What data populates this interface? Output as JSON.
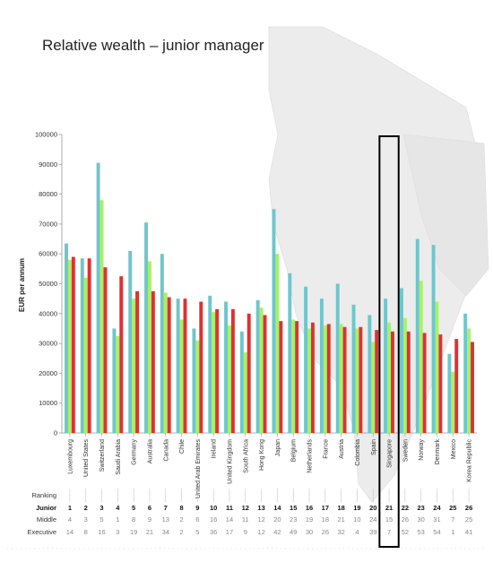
{
  "chart_data": {
    "type": "bar",
    "title": "Relative wealth – junior manager",
    "ylabel": "EUR per annum",
    "xlabel": "",
    "ylim": [
      0,
      100000
    ],
    "yticks": [
      "0",
      "10000",
      "20000",
      "30000",
      "40000",
      "50000",
      "60000",
      "70000",
      "80000",
      "90000",
      "100000"
    ],
    "grid": false,
    "legend": "none",
    "categories": [
      "Luxembourg",
      "United States",
      "Switzerland",
      "Saudi Arabia",
      "Germany",
      "Australia",
      "Canada",
      "Chile",
      "United Arab Emirates",
      "Ireland",
      "United Kingdom",
      "South Africa",
      "Hong Kong",
      "Japan",
      "Belgium",
      "Netherlands",
      "France",
      "Austria",
      "Colombia",
      "Spain",
      "Singapore",
      "Sweden",
      "Norway",
      "Denmark",
      "Mexico",
      "Korea Republic"
    ],
    "series": [
      {
        "color": "#6ec6cc",
        "values": [
          63500,
          58500,
          90500,
          35000,
          61000,
          70500,
          60000,
          45000,
          35000,
          46000,
          44000,
          34000,
          44500,
          75000,
          53500,
          49000,
          45000,
          50000,
          43000,
          39500,
          45000,
          48500,
          65000,
          63000,
          26500,
          40000
        ]
      },
      {
        "color": "#a8f06a",
        "values": [
          58000,
          52000,
          78000,
          32500,
          45000,
          57500,
          47000,
          38000,
          31000,
          40500,
          36000,
          27000,
          42000,
          60000,
          38000,
          35000,
          36000,
          36500,
          35000,
          30500,
          37000,
          38500,
          51000,
          44000,
          20500,
          35000
        ]
      },
      {
        "color": "#e32f2f",
        "values": [
          59000,
          58500,
          55500,
          52500,
          47500,
          47500,
          45500,
          45000,
          44000,
          41500,
          41500,
          40000,
          39500,
          37500,
          37500,
          37000,
          36500,
          35500,
          35500,
          34500,
          34000,
          34000,
          33500,
          33000,
          31500,
          30500
        ]
      }
    ],
    "table": {
      "row_labels": [
        "Ranking",
        "Junior",
        "Middle",
        "Executive"
      ],
      "junior": [
        "1",
        "2",
        "3",
        "4",
        "5",
        "6",
        "7",
        "8",
        "9",
        "10",
        "11",
        "12",
        "13",
        "14",
        "15",
        "16",
        "17",
        "18",
        "19",
        "20",
        "21",
        "22",
        "23",
        "24",
        "25",
        "26"
      ],
      "middle": [
        "4",
        "3",
        "5",
        "1",
        "8",
        "9",
        "13",
        "2",
        "6",
        "16",
        "14",
        "11",
        "12",
        "20",
        "23",
        "19",
        "18",
        "21",
        "10",
        "24",
        "15",
        "26",
        "30",
        "31",
        "7",
        "25"
      ],
      "executive": [
        "14",
        "8",
        "16",
        "3",
        "19",
        "21",
        "34",
        "2",
        "5",
        "36",
        "17",
        "9",
        "12",
        "42",
        "49",
        "30",
        "26",
        "32",
        "4",
        "39",
        "7",
        "52",
        "53",
        "54",
        "1",
        "41"
      ]
    },
    "highlight": "Singapore"
  }
}
